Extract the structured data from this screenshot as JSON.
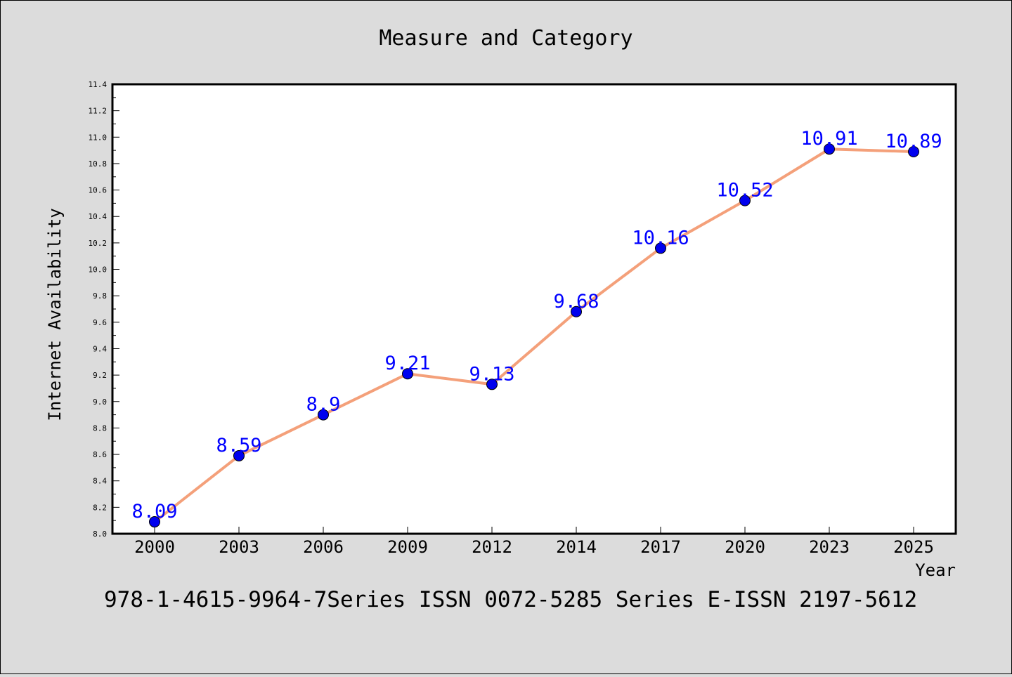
{
  "chart_data": {
    "type": "line",
    "title": "Measure and Category",
    "xlabel": "Year",
    "ylabel": "Internet Availability",
    "categories": [
      "2000",
      "2003",
      "2006",
      "2009",
      "2012",
      "2014",
      "2017",
      "2020",
      "2023",
      "2025"
    ],
    "series": [
      {
        "values": [
          8.09,
          8.59,
          8.9,
          9.21,
          9.13,
          9.68,
          10.16,
          10.52,
          10.91,
          10.89
        ],
        "data_labels": [
          "8.09",
          "8.59",
          "8.9",
          "9.21",
          "9.13",
          "9.68",
          "10.16",
          "10.52",
          "10.91",
          "10.89"
        ],
        "line_color": "#f4a07a",
        "marker_color": "#0000ee"
      }
    ],
    "ylim": [
      8.0,
      11.4
    ],
    "yticks": [
      "8.0",
      "8.2",
      "8.4",
      "8.6",
      "8.8",
      "9.0",
      "9.2",
      "9.4",
      "9.6",
      "9.8",
      "10.0",
      "10.2",
      "10.4",
      "10.6",
      "10.8",
      "11.0",
      "11.2",
      "11.4"
    ],
    "grid": false,
    "legend": "none",
    "colors": {
      "background": "#dcdcdc",
      "plot_area": "#ffffff",
      "label_color": "#0000ff"
    }
  },
  "caption": "978-1-4615-9964-7Series ISSN 0072-5285 Series E-ISSN 2197-5612"
}
